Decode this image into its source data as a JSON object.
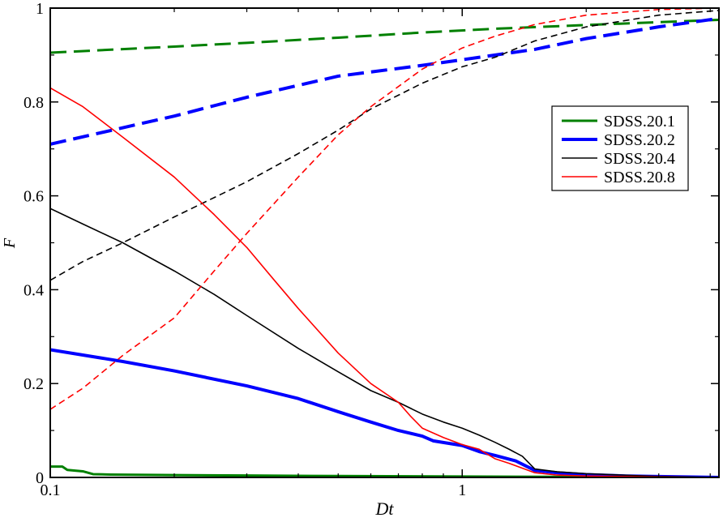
{
  "chart_data": {
    "type": "line",
    "title": "",
    "xlabel": "Dt",
    "ylabel": "F",
    "x_scale": "log",
    "xlim": [
      0.1,
      4.2
    ],
    "ylim": [
      0,
      1
    ],
    "x_ticks": [
      {
        "value": 0.1,
        "label": "0.1"
      },
      {
        "value": 1,
        "label": "1"
      }
    ],
    "y_ticks": [
      {
        "value": 0,
        "label": "0"
      },
      {
        "value": 0.2,
        "label": "0.2"
      },
      {
        "value": 0.4,
        "label": "0.4"
      },
      {
        "value": 0.6,
        "label": "0.6"
      },
      {
        "value": 0.8,
        "label": "0.8"
      },
      {
        "value": 1,
        "label": "1"
      }
    ],
    "grid": false,
    "legend_position": "right",
    "legend": [
      {
        "label": "SDSS.20.1",
        "color": "#008000",
        "width": 3
      },
      {
        "label": "SDSS.20.2",
        "color": "#0000ff",
        "width": 4
      },
      {
        "label": "SDSS.20.4",
        "color": "#000000",
        "width": 1.6
      },
      {
        "label": "SDSS.20.8",
        "color": "#ff0000",
        "width": 1.6
      }
    ],
    "series": [
      {
        "color": "#008000",
        "width": 3,
        "style": "solid",
        "points": [
          [
            0.1,
            0.023
          ],
          [
            0.107,
            0.023
          ],
          [
            0.11,
            0.016
          ],
          [
            0.12,
            0.013
          ],
          [
            0.127,
            0.007
          ],
          [
            0.14,
            0.006
          ],
          [
            0.2,
            0.005
          ],
          [
            0.3,
            0.004
          ],
          [
            0.5,
            0.003
          ],
          [
            1,
            0.002
          ],
          [
            2,
            0.001
          ],
          [
            4.2,
            0.0
          ]
        ]
      },
      {
        "color": "#008000",
        "width": 3,
        "style": "dashed",
        "points": [
          [
            0.1,
            0.905
          ],
          [
            0.2,
            0.918
          ],
          [
            0.3,
            0.926
          ],
          [
            0.5,
            0.937
          ],
          [
            0.8,
            0.948
          ],
          [
            1.2,
            0.956
          ],
          [
            2,
            0.964
          ],
          [
            3,
            0.97
          ],
          [
            4.2,
            0.975
          ]
        ]
      },
      {
        "color": "#0000ff",
        "width": 4,
        "style": "solid",
        "points": [
          [
            0.1,
            0.272
          ],
          [
            0.15,
            0.247
          ],
          [
            0.2,
            0.227
          ],
          [
            0.3,
            0.195
          ],
          [
            0.4,
            0.168
          ],
          [
            0.5,
            0.14
          ],
          [
            0.6,
            0.118
          ],
          [
            0.7,
            0.1
          ],
          [
            0.8,
            0.088
          ],
          [
            0.85,
            0.078
          ],
          [
            1.0,
            0.068
          ],
          [
            1.1,
            0.055
          ],
          [
            1.2,
            0.047
          ],
          [
            1.35,
            0.035
          ],
          [
            1.5,
            0.015
          ],
          [
            1.7,
            0.01
          ],
          [
            2.0,
            0.006
          ],
          [
            2.5,
            0.003
          ],
          [
            3,
            0.002
          ],
          [
            4.2,
            0.0
          ]
        ]
      },
      {
        "color": "#0000ff",
        "width": 4,
        "style": "dashed",
        "points": [
          [
            0.1,
            0.71
          ],
          [
            0.2,
            0.77
          ],
          [
            0.3,
            0.81
          ],
          [
            0.5,
            0.855
          ],
          [
            0.8,
            0.878
          ],
          [
            1.0,
            0.89
          ],
          [
            1.5,
            0.912
          ],
          [
            2,
            0.935
          ],
          [
            3,
            0.96
          ],
          [
            4.2,
            0.978
          ]
        ]
      },
      {
        "color": "#000000",
        "width": 1.6,
        "style": "solid",
        "points": [
          [
            0.1,
            0.573
          ],
          [
            0.12,
            0.54
          ],
          [
            0.15,
            0.5
          ],
          [
            0.2,
            0.44
          ],
          [
            0.25,
            0.39
          ],
          [
            0.3,
            0.345
          ],
          [
            0.4,
            0.275
          ],
          [
            0.5,
            0.225
          ],
          [
            0.6,
            0.185
          ],
          [
            0.7,
            0.16
          ],
          [
            0.8,
            0.135
          ],
          [
            0.9,
            0.118
          ],
          [
            1.0,
            0.105
          ],
          [
            1.1,
            0.09
          ],
          [
            1.2,
            0.075
          ],
          [
            1.3,
            0.06
          ],
          [
            1.4,
            0.045
          ],
          [
            1.5,
            0.018
          ],
          [
            1.7,
            0.012
          ],
          [
            2.0,
            0.008
          ],
          [
            3.0,
            0.002
          ],
          [
            4.2,
            0.0
          ]
        ]
      },
      {
        "color": "#000000",
        "width": 1.6,
        "style": "dashed",
        "points": [
          [
            0.1,
            0.42
          ],
          [
            0.12,
            0.46
          ],
          [
            0.15,
            0.5
          ],
          [
            0.2,
            0.555
          ],
          [
            0.3,
            0.63
          ],
          [
            0.4,
            0.69
          ],
          [
            0.5,
            0.74
          ],
          [
            0.6,
            0.785
          ],
          [
            0.8,
            0.84
          ],
          [
            1.0,
            0.875
          ],
          [
            1.2,
            0.895
          ],
          [
            1.5,
            0.93
          ],
          [
            2.0,
            0.96
          ],
          [
            3.0,
            0.985
          ],
          [
            4.2,
            0.995
          ]
        ]
      },
      {
        "color": "#ff0000",
        "width": 1.6,
        "style": "solid",
        "points": [
          [
            0.1,
            0.83
          ],
          [
            0.12,
            0.79
          ],
          [
            0.15,
            0.725
          ],
          [
            0.2,
            0.64
          ],
          [
            0.25,
            0.56
          ],
          [
            0.3,
            0.49
          ],
          [
            0.35,
            0.42
          ],
          [
            0.4,
            0.36
          ],
          [
            0.5,
            0.265
          ],
          [
            0.6,
            0.2
          ],
          [
            0.7,
            0.16
          ],
          [
            0.75,
            0.13
          ],
          [
            0.8,
            0.105
          ],
          [
            0.9,
            0.085
          ],
          [
            1.0,
            0.07
          ],
          [
            1.1,
            0.06
          ],
          [
            1.2,
            0.04
          ],
          [
            1.3,
            0.03
          ],
          [
            1.5,
            0.01
          ],
          [
            1.7,
            0.005
          ],
          [
            2.0,
            0.003
          ],
          [
            3.0,
            0.001
          ],
          [
            4.2,
            0.0
          ]
        ]
      },
      {
        "color": "#ff0000",
        "width": 1.6,
        "style": "dashed",
        "points": [
          [
            0.1,
            0.145
          ],
          [
            0.12,
            0.19
          ],
          [
            0.15,
            0.26
          ],
          [
            0.2,
            0.34
          ],
          [
            0.25,
            0.44
          ],
          [
            0.3,
            0.52
          ],
          [
            0.4,
            0.64
          ],
          [
            0.5,
            0.73
          ],
          [
            0.6,
            0.79
          ],
          [
            0.8,
            0.87
          ],
          [
            1.0,
            0.915
          ],
          [
            1.2,
            0.94
          ],
          [
            1.5,
            0.965
          ],
          [
            2.0,
            0.985
          ],
          [
            3.0,
            0.997
          ],
          [
            4.2,
            1.0
          ]
        ]
      }
    ]
  }
}
